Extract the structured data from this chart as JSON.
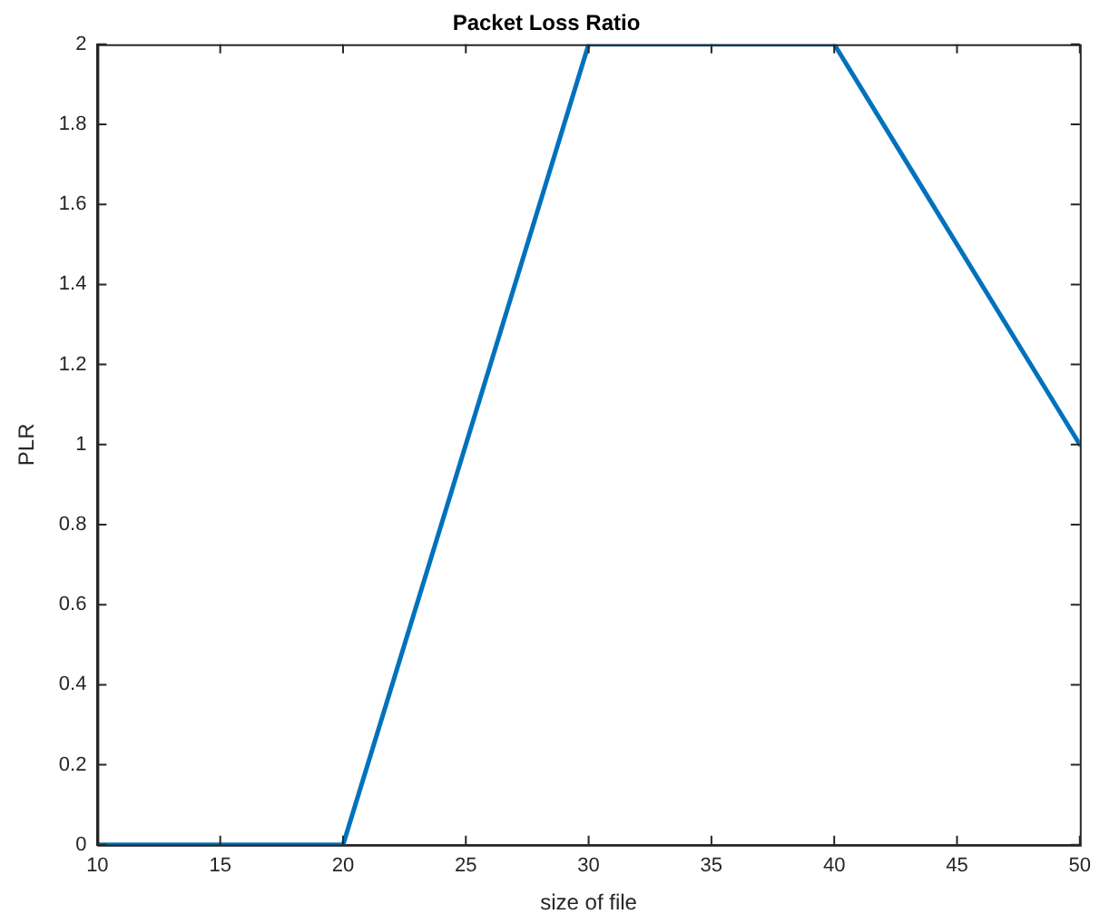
{
  "chart_data": {
    "type": "line",
    "title": "Packet Loss Ratio",
    "xlabel": "size of file",
    "ylabel": "PLR",
    "x": [
      10,
      20,
      30,
      40,
      50
    ],
    "series": [
      {
        "color": "#0072bd",
        "values": [
          0,
          0,
          2,
          2,
          1
        ]
      }
    ],
    "xlim": [
      10,
      50
    ],
    "xticks": [
      10,
      15,
      20,
      25,
      30,
      35,
      40,
      45,
      50
    ],
    "ylim": [
      0,
      2
    ],
    "yticks": [
      0,
      0.2,
      0.4,
      0.6,
      0.8,
      1,
      1.2,
      1.4,
      1.6,
      1.8,
      2
    ],
    "grid": false,
    "legend": false,
    "marker": "none",
    "line_style": "solid"
  }
}
